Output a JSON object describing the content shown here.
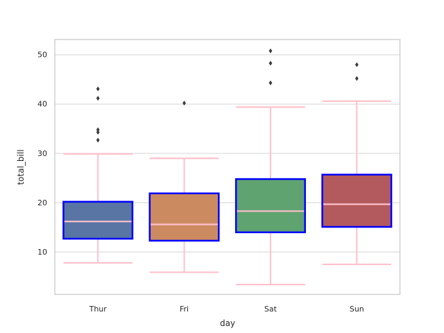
{
  "figure": {
    "background": "#FFFFFF"
  },
  "chart_data": {
    "type": "boxplot",
    "title": "",
    "xlabel": "day",
    "ylabel": "total_bill",
    "categories": [
      "Thur",
      "Fri",
      "Sat",
      "Sun"
    ],
    "ytick_values": [
      10,
      20,
      30,
      40,
      50
    ],
    "ytick_labels": [
      "10",
      "20",
      "30",
      "40",
      "50"
    ],
    "ylim": [
      1.4,
      53.1
    ],
    "grid": "horizontal-only",
    "legend": "none",
    "series": [
      {
        "category": "Thur",
        "whisker_low": 7.8,
        "q1": 12.7,
        "median": 16.2,
        "q3": 20.2,
        "whisker_high": 29.9,
        "outliers": [
          32.7,
          34.3,
          34.8,
          41.2,
          43.1
        ],
        "fill": "#5875A4"
      },
      {
        "category": "Fri",
        "whisker_low": 5.9,
        "q1": 12.3,
        "median": 15.6,
        "q3": 21.9,
        "whisker_high": 29.0,
        "outliers": [
          40.2
        ],
        "fill": "#CC8A60"
      },
      {
        "category": "Sat",
        "whisker_low": 3.4,
        "q1": 14.0,
        "median": 18.3,
        "q3": 24.8,
        "whisker_high": 39.4,
        "outliers": [
          44.3,
          48.3,
          50.8
        ],
        "fill": "#5FA371"
      },
      {
        "category": "Sun",
        "whisker_low": 7.5,
        "q1": 15.1,
        "median": 19.7,
        "q3": 25.7,
        "whisker_high": 40.6,
        "outliers": [
          45.2,
          48.0
        ],
        "fill": "#B35A5E"
      }
    ],
    "colors": {
      "box_edge": "#0000FF",
      "whisker": "#FFC0CB",
      "cap": "#FFC0CB",
      "median": "#FFC0CB",
      "outlier": "#3D3D3D",
      "grid": "#DDDDDD",
      "axes_border": "#CCCCCC",
      "text": "#262626"
    }
  }
}
